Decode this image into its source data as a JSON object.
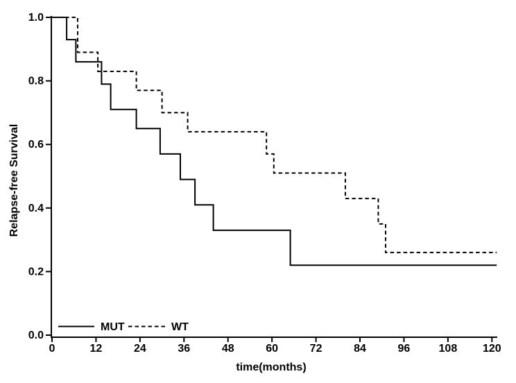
{
  "colors": {
    "foreground": "#000000",
    "background": "#ffffff"
  },
  "chart_data": {
    "type": "line",
    "subtype": "kaplan_meier_step",
    "title": "",
    "xlabel": "time(months)",
    "ylabel": "Relapse-free Survival",
    "xlim": [
      0,
      121
    ],
    "ylim": [
      0.0,
      1.0
    ],
    "grid": false,
    "frame": "left-bottom-only",
    "legend_position": "inside-bottom-left",
    "x_ticks": [
      {
        "value": 0,
        "label": "0"
      },
      {
        "value": 12,
        "label": "12"
      },
      {
        "value": 24,
        "label": "24"
      },
      {
        "value": 36,
        "label": "36"
      },
      {
        "value": 48,
        "label": "48"
      },
      {
        "value": 60,
        "label": "60"
      },
      {
        "value": 72,
        "label": "72"
      },
      {
        "value": 84,
        "label": "84"
      },
      {
        "value": 96,
        "label": "96"
      },
      {
        "value": 108,
        "label": "108"
      },
      {
        "value": 120,
        "label": "120"
      }
    ],
    "y_ticks": [
      {
        "value": 0.0,
        "label": "0.0"
      },
      {
        "value": 0.2,
        "label": "0.2"
      },
      {
        "value": 0.4,
        "label": "0.4"
      },
      {
        "value": 0.6,
        "label": "0.6"
      },
      {
        "value": 0.8,
        "label": "0.8"
      },
      {
        "value": 1.0,
        "label": "1.0"
      }
    ],
    "series": [
      {
        "name": "MUT",
        "line_style": "solid",
        "color": "#000000",
        "steps": [
          [
            0,
            1.0
          ],
          [
            4,
            0.93
          ],
          [
            6.5,
            0.86
          ],
          [
            13.5,
            0.79
          ],
          [
            16,
            0.71
          ],
          [
            23,
            0.65
          ],
          [
            29.5,
            0.57
          ],
          [
            35,
            0.49
          ],
          [
            39,
            0.41
          ],
          [
            44,
            0.33
          ],
          [
            65,
            0.22
          ]
        ],
        "end_time": 121.3
      },
      {
        "name": "WT",
        "line_style": "dashed",
        "color": "#000000",
        "steps": [
          [
            0,
            1.0
          ],
          [
            7,
            0.89
          ],
          [
            12.5,
            0.83
          ],
          [
            23,
            0.77
          ],
          [
            30,
            0.7
          ],
          [
            37,
            0.64
          ],
          [
            58.5,
            0.57
          ],
          [
            60.5,
            0.51
          ],
          [
            80,
            0.43
          ],
          [
            89,
            0.35
          ],
          [
            91,
            0.26
          ]
        ],
        "end_time": 121.3
      }
    ]
  }
}
